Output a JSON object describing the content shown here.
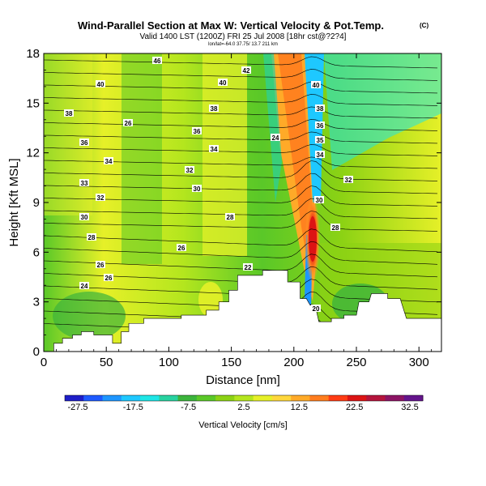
{
  "chart_data": {
    "type": "contour",
    "title": "Wind-Parallel Section at Max W: Vertical Velocity & Pot.Temp.",
    "title_mark": "(C)",
    "subtitle": "Valid 1400 LST (1200Z) FRI 25 Jul 2008 [18hr cst@?2?4]",
    "subtitle2": "lon/lat=-64.0 37.75/ 13.7 211 km",
    "xlabel": "Distance [nm]",
    "ylabel": "Height [Kft MSL]",
    "xlim": [
      0,
      318
    ],
    "ylim": [
      0,
      18
    ],
    "x_ticks": [
      "0",
      "50",
      "100",
      "150",
      "200",
      "250",
      "300"
    ],
    "y_ticks": [
      "0",
      "3",
      "6",
      "9",
      "12",
      "15",
      "18"
    ],
    "colorbar": {
      "label": "Vertical Velocity [cm/s]",
      "tick_labels": [
        "-27.5",
        "-17.5",
        "-7.5",
        "2.5",
        "12.5",
        "22.5",
        "32.5"
      ],
      "colors": [
        "#1e1ec8",
        "#1e5aff",
        "#1e96ff",
        "#1ec8ff",
        "#1ee6e6",
        "#28d2a0",
        "#3cb43c",
        "#5ac828",
        "#8cd214",
        "#b4e61e",
        "#e6f028",
        "#ffd73c",
        "#ffaa28",
        "#ff7d1e",
        "#ff3c14",
        "#dc1414",
        "#b4143c",
        "#8c1464",
        "#64148c"
      ]
    },
    "theta_contour_labels": [
      "46",
      "42",
      "40",
      "40",
      "40",
      "38",
      "38",
      "38",
      "36",
      "36",
      "36",
      "35",
      "34",
      "34",
      "34",
      "33",
      "32",
      "32",
      "32",
      "30",
      "30",
      "30",
      "28",
      "28",
      "28",
      "26",
      "26",
      "26",
      "24",
      "22",
      "20",
      "26",
      "24"
    ],
    "terrain_profile": [
      [
        0,
        0
      ],
      [
        8,
        0
      ],
      [
        8,
        0.5
      ],
      [
        15,
        0.5
      ],
      [
        15,
        0.8
      ],
      [
        23,
        0.8
      ],
      [
        23,
        1
      ],
      [
        30,
        1
      ],
      [
        30,
        1.2
      ],
      [
        40,
        1.2
      ],
      [
        40,
        1
      ],
      [
        55,
        1
      ],
      [
        55,
        0.5
      ],
      [
        62,
        0.5
      ],
      [
        62,
        1.2
      ],
      [
        68,
        1.2
      ],
      [
        68,
        1.7
      ],
      [
        80,
        1.7
      ],
      [
        80,
        2
      ],
      [
        110,
        2
      ],
      [
        110,
        2.2
      ],
      [
        130,
        2.2
      ],
      [
        130,
        2.5
      ],
      [
        140,
        2.5
      ],
      [
        140,
        3
      ],
      [
        148,
        3
      ],
      [
        148,
        3.7
      ],
      [
        155,
        3.7
      ],
      [
        155,
        4.6
      ],
      [
        175,
        4.6
      ],
      [
        175,
        4.9
      ],
      [
        195,
        4.9
      ],
      [
        195,
        4.2
      ],
      [
        205,
        4.2
      ],
      [
        205,
        3.2
      ],
      [
        210,
        3.2
      ],
      [
        213,
        2.8
      ],
      [
        217,
        2.8
      ],
      [
        220,
        1.8
      ],
      [
        230,
        1.8
      ],
      [
        230,
        2
      ],
      [
        240,
        2
      ],
      [
        240,
        2.2
      ],
      [
        250,
        2.2
      ],
      [
        252,
        3
      ],
      [
        260,
        3
      ],
      [
        262,
        3.5
      ],
      [
        275,
        3.5
      ],
      [
        275,
        3.2
      ],
      [
        285,
        3.2
      ],
      [
        290,
        2
      ],
      [
        318,
        2
      ],
      [
        318,
        0
      ]
    ]
  }
}
